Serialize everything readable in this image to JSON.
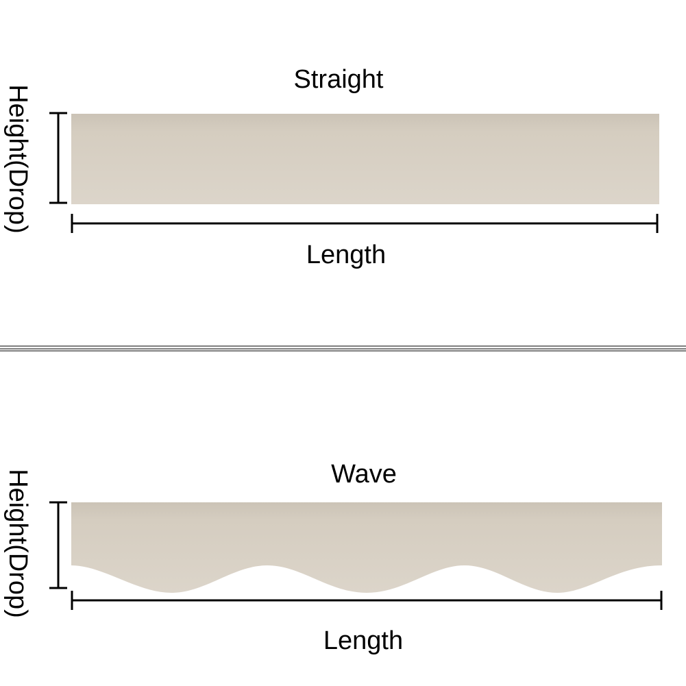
{
  "straight": {
    "title": "Straight",
    "height_label": "Height(Drop)",
    "length_label": "Length"
  },
  "wave": {
    "title": "Wave",
    "height_label": "Height(Drop)",
    "length_label": "Length"
  }
}
